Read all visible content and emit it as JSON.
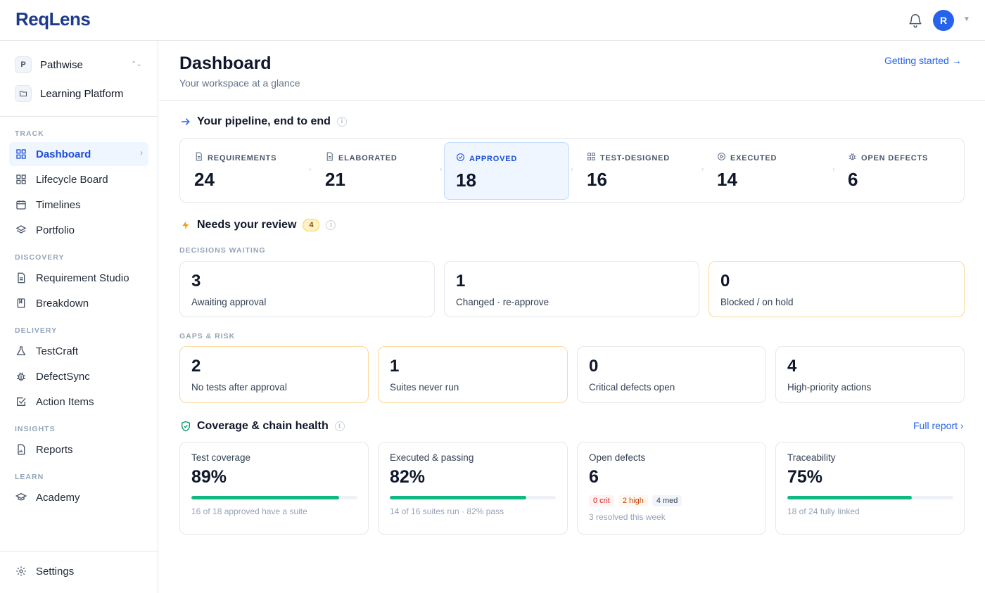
{
  "app": {
    "logo": "ReqLens",
    "avatar_initial": "R"
  },
  "workspace": {
    "org_badge": "P",
    "org_name": "Pathwise",
    "project_name": "Learning Platform"
  },
  "nav": {
    "track_label": "TRACK",
    "dashboard": "Dashboard",
    "lifecycle": "Lifecycle Board",
    "timelines": "Timelines",
    "portfolio": "Portfolio",
    "discovery_label": "DISCOVERY",
    "req_studio": "Requirement Studio",
    "breakdown": "Breakdown",
    "delivery_label": "DELIVERY",
    "testcraft": "TestCraft",
    "defectsync": "DefectSync",
    "action_items": "Action Items",
    "insights_label": "INSIGHTS",
    "reports": "Reports",
    "learn_label": "LEARN",
    "academy": "Academy",
    "settings": "Settings"
  },
  "header": {
    "title": "Dashboard",
    "subtitle": "Your workspace at a glance",
    "getting_started": "Getting started →"
  },
  "pipeline": {
    "title": "Your pipeline, end to end",
    "stages": [
      {
        "label": "REQUIREMENTS",
        "value": "24"
      },
      {
        "label": "ELABORATED",
        "value": "21"
      },
      {
        "label": "APPROVED",
        "value": "18"
      },
      {
        "label": "TEST-DESIGNED",
        "value": "16"
      },
      {
        "label": "EXECUTED",
        "value": "14"
      },
      {
        "label": "OPEN DEFECTS",
        "value": "6"
      }
    ]
  },
  "review": {
    "title": "Needs your review",
    "count": "4",
    "decisions_label": "DECISIONS WAITING",
    "decisions": [
      {
        "value": "3",
        "label": "Awaiting approval"
      },
      {
        "value": "1",
        "label": "Changed · re-approve"
      },
      {
        "value": "0",
        "label": "Blocked / on hold"
      }
    ],
    "gaps_label": "GAPS & RISK",
    "gaps": [
      {
        "value": "2",
        "label": "No tests after approval"
      },
      {
        "value": "1",
        "label": "Suites never run"
      },
      {
        "value": "0",
        "label": "Critical defects open"
      },
      {
        "value": "4",
        "label": "High-priority actions"
      }
    ]
  },
  "health": {
    "title": "Coverage & chain health",
    "full_report": "Full report ›",
    "coverage": {
      "label": "Test coverage",
      "value": "89%",
      "fraction": 0.89,
      "note": "16 of 18 approved have a suite"
    },
    "passing": {
      "label": "Executed & passing",
      "value": "82%",
      "fraction": 0.82,
      "note": "14 of 16 suites run · 82% pass"
    },
    "defects": {
      "label": "Open defects",
      "value": "6",
      "crit": "0 crit",
      "high": "2 high",
      "med": "4 med",
      "note": "3 resolved this week"
    },
    "traceability": {
      "label": "Traceability",
      "value": "75%",
      "fraction": 0.75,
      "note": "18 of 24 fully linked"
    }
  },
  "colors": {
    "accent": "#2563eb",
    "success": "#10b981",
    "warning_border": "#fcd89a"
  }
}
